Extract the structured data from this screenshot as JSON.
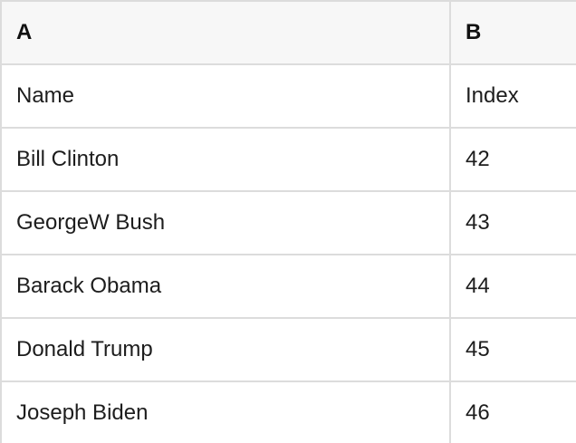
{
  "table": {
    "columns": [
      {
        "label": "A"
      },
      {
        "label": "B"
      }
    ],
    "rows": [
      {
        "a": "Name",
        "b": "Index"
      },
      {
        "a": "Bill Clinton",
        "b": "42"
      },
      {
        "a": "GeorgeW Bush",
        "b": "43"
      },
      {
        "a": "Barack Obama",
        "b": "44"
      },
      {
        "a": "Donald Trump",
        "b": "45"
      },
      {
        "a": "Joseph Biden",
        "b": "46"
      }
    ]
  },
  "colors": {
    "header_bg": "#f7f7f7",
    "grid_border": "#dcdcdc",
    "cell_bg": "#ffffff",
    "text": "#1d1d1d"
  }
}
